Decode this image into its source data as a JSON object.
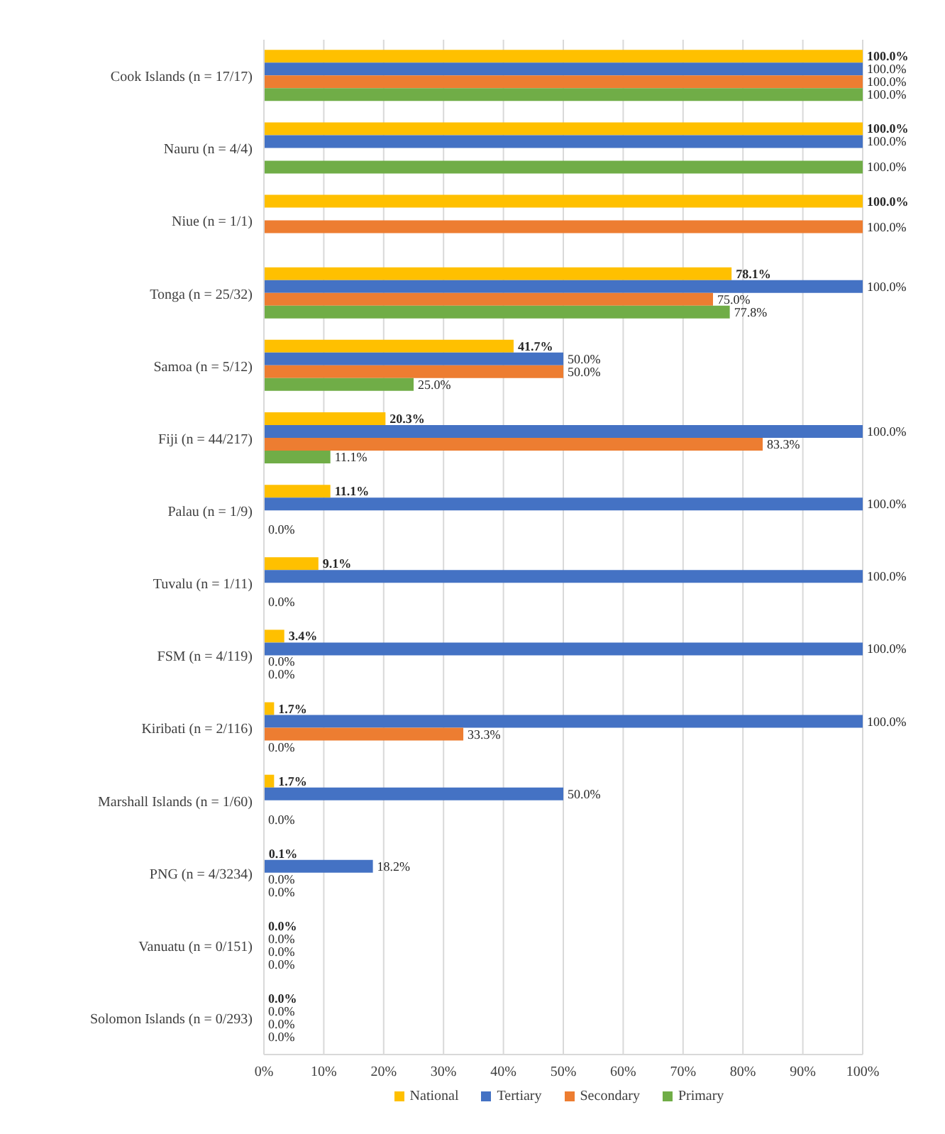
{
  "chart_data": {
    "type": "bar",
    "orientation": "horizontal",
    "categories": [
      "Cook Islands (n = 17/17)",
      "Nauru (n = 4/4)",
      "Niue (n = 1/1)",
      "Tonga (n = 25/32)",
      "Samoa (n = 5/12)",
      "Fiji (n = 44/217)",
      "Palau (n = 1/9)",
      "Tuvalu (n = 1/11)",
      "FSM (n = 4/119)",
      "Kiribati (n = 2/116)",
      "Marshall Islands (n = 1/60)",
      "PNG (n = 4/3234)",
      "Vanuatu (n = 0/151)",
      "Solomon Islands (n = 0/293)"
    ],
    "series": [
      {
        "name": "National",
        "color": "#ffc000",
        "values": [
          100,
          100,
          100,
          78.1,
          41.7,
          20.3,
          11.1,
          9.1,
          3.4,
          1.7,
          1.7,
          0.1,
          0,
          0
        ],
        "value_labels": [
          "100.0%",
          "100.0%",
          "100.0%",
          "78.1%",
          "41.7%",
          "20.3%",
          "11.1%",
          "9.1%",
          "3.4%",
          "1.7%",
          "1.7%",
          "0.1%",
          "0.0%",
          "0.0%"
        ]
      },
      {
        "name": "Tertiary",
        "color": "#4472c4",
        "values": [
          100,
          100,
          null,
          100,
          50,
          100,
          100,
          100,
          100,
          100,
          50,
          18.2,
          0,
          0
        ],
        "value_labels": [
          "100.0%",
          "100.0%",
          null,
          "100.0%",
          "50.0%",
          "100.0%",
          "100.0%",
          "100.0%",
          "100.0%",
          "100.0%",
          "50.0%",
          "18.2%",
          "0.0%",
          "0.0%"
        ]
      },
      {
        "name": "Secondary",
        "color": "#ed7d31",
        "values": [
          100,
          null,
          100,
          75,
          50,
          83.3,
          null,
          null,
          0,
          33.3,
          null,
          0,
          0,
          0
        ],
        "value_labels": [
          "100.0%",
          null,
          "100.0%",
          "75.0%",
          "50.0%",
          "83.3%",
          null,
          null,
          "0.0%",
          "33.3%",
          null,
          "0.0%",
          "0.0%",
          "0.0%"
        ]
      },
      {
        "name": "Primary",
        "color": "#70ad47",
        "values": [
          100,
          100,
          null,
          77.8,
          25,
          11.1,
          0,
          0,
          0,
          0,
          0,
          0,
          0,
          0
        ],
        "value_labels": [
          "100.0%",
          "100.0%",
          null,
          "77.8%",
          "25.0%",
          "11.1%",
          "0.0%",
          "0.0%",
          "0.0%",
          "0.0%",
          "0.0%",
          "0.0%",
          "0.0%",
          "0.0%"
        ]
      }
    ],
    "xlim": [
      0,
      100
    ],
    "xticks": [
      {
        "value": 0,
        "label": "0%"
      },
      {
        "value": 10,
        "label": "10%"
      },
      {
        "value": 20,
        "label": "20%"
      },
      {
        "value": 30,
        "label": "30%"
      },
      {
        "value": 40,
        "label": "40%"
      },
      {
        "value": 50,
        "label": "50%"
      },
      {
        "value": 60,
        "label": "60%"
      },
      {
        "value": 70,
        "label": "70%"
      },
      {
        "value": 80,
        "label": "80%"
      },
      {
        "value": 90,
        "label": "90%"
      },
      {
        "value": 100,
        "label": "100%"
      }
    ],
    "grid": "x",
    "legend": "bottom"
  }
}
